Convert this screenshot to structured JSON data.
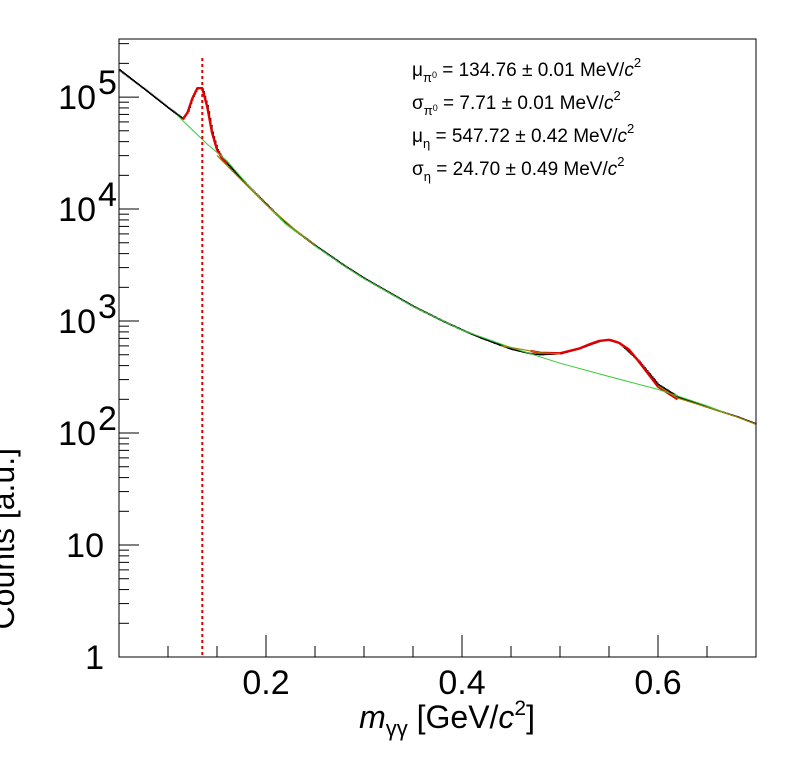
{
  "chart_data": {
    "type": "line",
    "xlabel": {
      "var": "m",
      "sub": "γγ",
      "unit_pre": " [GeV/",
      "unit_var": "c",
      "unit_sup": "2",
      "unit_post": "]"
    },
    "ylabel": "Counts [a.u.]",
    "xlim": [
      0.05,
      0.7
    ],
    "ylim": [
      1,
      330000
    ],
    "yscale": "log",
    "x_ticks": [
      {
        "value": 0.2,
        "label": "0.2"
      },
      {
        "value": 0.4,
        "label": "0.4"
      },
      {
        "value": 0.6,
        "label": "0.6"
      }
    ],
    "y_ticks": [
      {
        "value": 1,
        "label": "1",
        "exp": ""
      },
      {
        "value": 10,
        "label": "10",
        "exp": ""
      },
      {
        "value": 100,
        "label": "10",
        "exp": "2"
      },
      {
        "value": 1000,
        "label": "10",
        "exp": "3"
      },
      {
        "value": 10000,
        "label": "10",
        "exp": "4"
      },
      {
        "value": 100000,
        "label": "10",
        "exp": "5"
      }
    ],
    "vline": {
      "x": 0.135,
      "color": "#dd0000",
      "style": "dotted"
    },
    "series": [
      {
        "type": "histogram",
        "color": "#000000",
        "x": [
          0.05,
          0.08,
          0.1,
          0.115,
          0.12,
          0.125,
          0.13,
          0.135,
          0.14,
          0.145,
          0.15,
          0.155,
          0.16,
          0.18,
          0.2,
          0.22,
          0.25,
          0.28,
          0.3,
          0.33,
          0.35,
          0.38,
          0.4,
          0.42,
          0.45,
          0.47,
          0.48,
          0.5,
          0.52,
          0.54,
          0.55,
          0.56,
          0.58,
          0.6,
          0.62,
          0.65,
          0.68,
          0.7
        ],
        "y": [
          175000,
          110000,
          80000,
          64000,
          74000,
          100000,
          122000,
          118000,
          82000,
          48000,
          34000,
          28500,
          25500,
          16500,
          11000,
          7400,
          4700,
          3100,
          2400,
          1700,
          1350,
          1000,
          830,
          700,
          560,
          510,
          500,
          510,
          570,
          660,
          685,
          640,
          440,
          270,
          210,
          170,
          140,
          120
        ]
      },
      {
        "type": "fit",
        "color": "#e00000",
        "x": [
          0.115,
          0.12,
          0.125,
          0.13,
          0.135,
          0.14,
          0.145,
          0.15,
          0.155,
          0.16
        ],
        "y": [
          63000,
          73000,
          98000,
          120000,
          120000,
          82000,
          48000,
          34000,
          28500,
          25500
        ]
      },
      {
        "type": "fit",
        "color": "#e00000",
        "x": [
          0.47,
          0.48,
          0.5,
          0.52,
          0.53,
          0.54,
          0.55,
          0.56,
          0.57,
          0.58,
          0.6,
          0.62
        ],
        "y": [
          540,
          520,
          515,
          570,
          620,
          665,
          680,
          640,
          560,
          440,
          260,
          200
        ]
      },
      {
        "type": "background",
        "color": "#33cc33",
        "x": [
          0.11,
          0.14,
          0.16,
          0.18,
          0.2,
          0.22,
          0.25,
          0.28,
          0.3,
          0.35,
          0.4,
          0.45,
          0.5,
          0.55,
          0.6,
          0.65,
          0.7
        ],
        "y": [
          68000,
          38000,
          27000,
          17000,
          11000,
          7400,
          4700,
          3100,
          2400,
          1350,
          830,
          580,
          420,
          320,
          245,
          175,
          120
        ]
      },
      {
        "type": "fit",
        "color": "#a08000",
        "x": [
          0.15,
          0.17,
          0.2,
          0.23,
          0.25
        ],
        "y": [
          30000,
          20000,
          11000,
          6500,
          4700
        ]
      },
      {
        "type": "fit",
        "color": "#a08000",
        "x": [
          0.44,
          0.46,
          0.48,
          0.5
        ],
        "y": [
          600,
          560,
          520,
          510
        ]
      },
      {
        "type": "fit",
        "color": "#a08000",
        "x": [
          0.6,
          0.62,
          0.65,
          0.68,
          0.7
        ],
        "y": [
          265,
          205,
          170,
          140,
          120
        ]
      }
    ],
    "annotations": [
      {
        "sym": "μ",
        "sub": "π",
        "subsup": "0",
        "text": " = 134.76 ± 0.01 MeV/",
        "var": "c",
        "sup": "2"
      },
      {
        "sym": "σ",
        "sub": "π",
        "subsup": "0",
        "text": " = 7.71 ± 0.01 MeV/",
        "var": "c",
        "sup": "2"
      },
      {
        "sym": "μ",
        "sub": "η",
        "subsup": "",
        "text": " = 547.72 ± 0.42 MeV/",
        "var": "c",
        "sup": "2"
      },
      {
        "sym": "σ",
        "sub": "η",
        "subsup": "",
        "text": " = 24.70 ± 0.49 MeV/",
        "var": "c",
        "sup": "2"
      }
    ]
  }
}
